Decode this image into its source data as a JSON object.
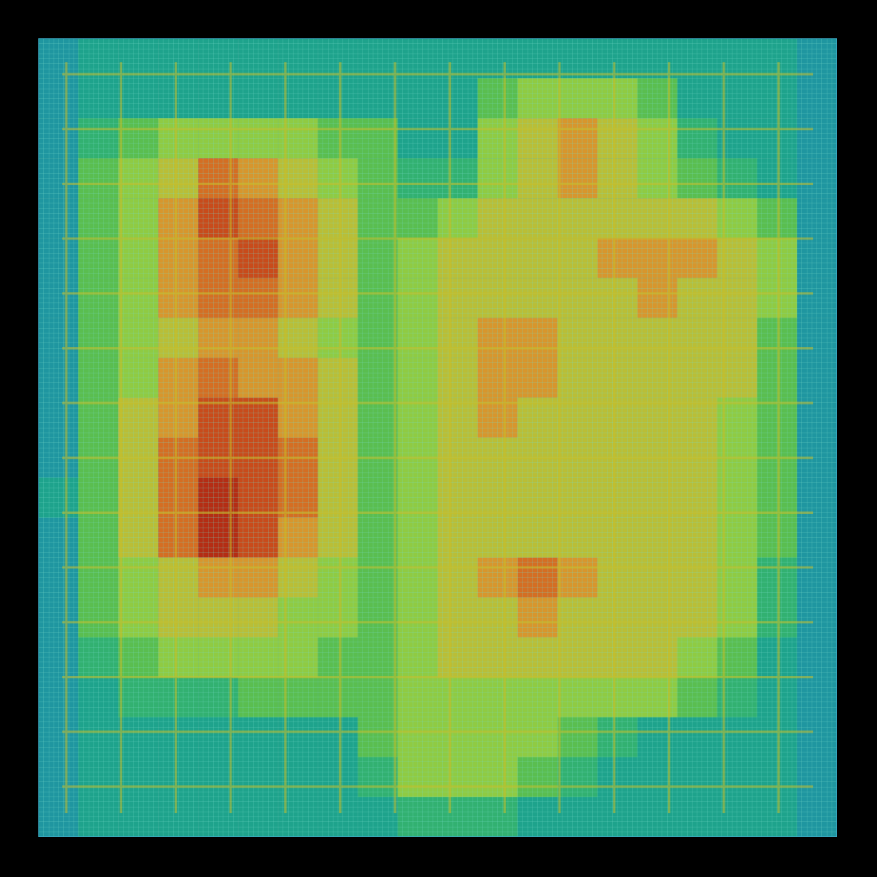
{
  "chart_data": {
    "type": "heatmap",
    "tick_labels": false,
    "grid": true,
    "clim": [
      0,
      10
    ],
    "cells": [
      [
        0,
        1,
        1,
        1,
        1,
        1,
        1,
        1,
        1,
        1,
        1,
        1,
        1,
        1,
        1,
        1,
        1,
        1,
        1,
        0
      ],
      [
        0,
        1,
        1,
        1,
        1,
        1,
        1,
        1,
        1,
        1,
        1,
        3,
        4,
        4,
        4,
        3,
        1,
        1,
        1,
        0
      ],
      [
        0,
        2,
        3,
        4,
        4,
        4,
        4,
        3,
        3,
        1,
        1,
        4,
        5,
        6,
        5,
        4,
        2,
        1,
        1,
        0
      ],
      [
        0,
        3,
        4,
        5,
        7,
        6,
        5,
        4,
        3,
        2,
        2,
        4,
        5,
        6,
        5,
        4,
        3,
        2,
        1,
        0
      ],
      [
        0,
        3,
        4,
        6,
        8,
        7,
        6,
        5,
        3,
        3,
        4,
        5,
        5,
        5,
        5,
        5,
        5,
        4,
        3,
        0
      ],
      [
        0,
        3,
        4,
        6,
        7,
        8,
        6,
        5,
        3,
        4,
        5,
        5,
        5,
        5,
        6,
        6,
        6,
        5,
        4,
        0
      ],
      [
        0,
        3,
        4,
        6,
        7,
        7,
        6,
        5,
        3,
        4,
        5,
        5,
        5,
        5,
        5,
        6,
        5,
        5,
        4,
        0
      ],
      [
        0,
        3,
        4,
        5,
        6,
        6,
        5,
        4,
        3,
        4,
        5,
        6,
        6,
        5,
        5,
        5,
        5,
        5,
        3,
        0
      ],
      [
        0,
        3,
        4,
        6,
        7,
        6,
        6,
        5,
        3,
        4,
        5,
        6,
        6,
        5,
        5,
        5,
        5,
        5,
        3,
        0
      ],
      [
        0,
        3,
        5,
        6,
        8,
        8,
        6,
        5,
        3,
        4,
        5,
        6,
        5,
        5,
        5,
        5,
        5,
        4,
        3,
        0
      ],
      [
        0,
        3,
        5,
        7,
        8,
        8,
        7,
        5,
        3,
        4,
        5,
        5,
        5,
        5,
        5,
        5,
        5,
        4,
        3,
        0
      ],
      [
        1,
        3,
        5,
        7,
        9,
        8,
        7,
        5,
        3,
        4,
        5,
        5,
        5,
        5,
        5,
        5,
        5,
        4,
        3,
        0
      ],
      [
        0,
        3,
        5,
        7,
        9,
        8,
        6,
        5,
        3,
        4,
        5,
        5,
        5,
        5,
        5,
        5,
        5,
        4,
        3,
        0
      ],
      [
        0,
        3,
        4,
        5,
        6,
        6,
        5,
        4,
        3,
        4,
        5,
        6,
        7,
        6,
        5,
        5,
        5,
        4,
        2,
        0
      ],
      [
        0,
        3,
        4,
        5,
        5,
        5,
        4,
        4,
        3,
        4,
        5,
        5,
        6,
        5,
        5,
        5,
        5,
        4,
        2,
        0
      ],
      [
        0,
        2,
        3,
        4,
        4,
        4,
        4,
        3,
        3,
        4,
        5,
        5,
        5,
        5,
        5,
        5,
        4,
        3,
        1,
        0
      ],
      [
        0,
        1,
        2,
        2,
        2,
        3,
        3,
        3,
        3,
        4,
        4,
        4,
        4,
        4,
        4,
        4,
        3,
        2,
        1,
        0
      ],
      [
        0,
        1,
        1,
        1,
        1,
        1,
        1,
        1,
        3,
        4,
        4,
        4,
        4,
        3,
        2,
        1,
        1,
        1,
        1,
        0
      ],
      [
        0,
        1,
        1,
        1,
        1,
        1,
        1,
        1,
        2,
        4,
        4,
        4,
        3,
        2,
        1,
        1,
        1,
        1,
        1,
        0
      ],
      [
        0,
        1,
        1,
        1,
        1,
        1,
        1,
        1,
        1,
        2,
        2,
        2,
        1,
        1,
        1,
        1,
        1,
        1,
        1,
        0
      ]
    ]
  }
}
